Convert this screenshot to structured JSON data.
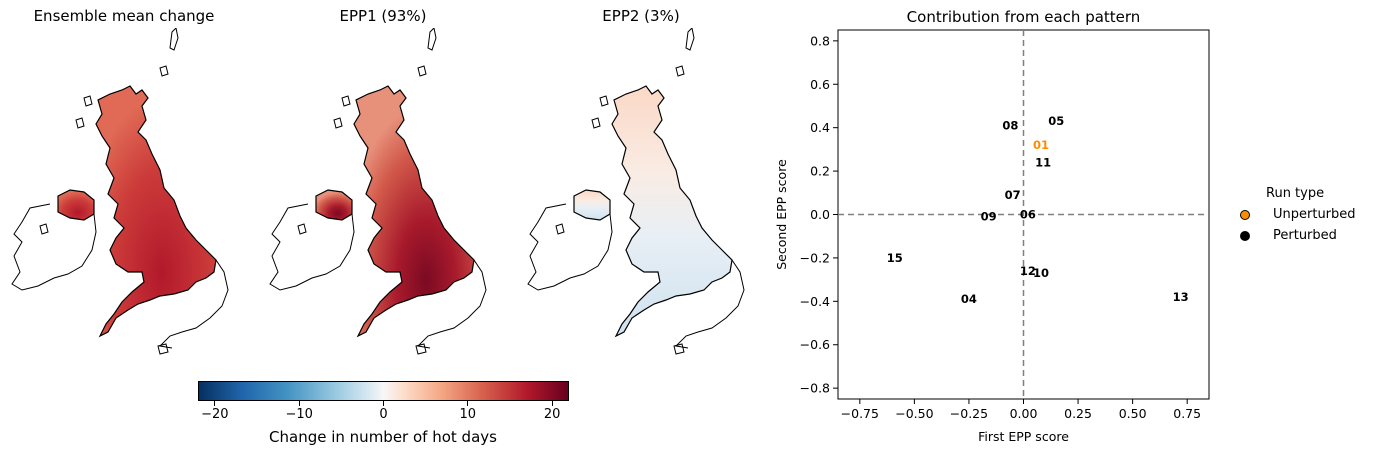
{
  "maps": [
    {
      "title": "Ensemble mean change"
    },
    {
      "title": "EPP1 (93%)"
    },
    {
      "title": "EPP2 (3%)"
    }
  ],
  "colorbar": {
    "label": "Change in number of hot days",
    "ticks": [
      "−20",
      "−10",
      "0",
      "10",
      "20"
    ],
    "tick_values": [
      -20,
      -10,
      0,
      10,
      20
    ],
    "range": [
      -22,
      22
    ],
    "colormap": "RdBu_r"
  },
  "chart_data": {
    "type": "scatter",
    "title": "Contribution from each pattern",
    "xlabel": "First EPP score",
    "ylabel": "Second EPP score",
    "xlim": [
      -0.85,
      0.85
    ],
    "ylim": [
      -0.85,
      0.85
    ],
    "xticks": [
      "−0.75",
      "−0.50",
      "−0.25",
      "0.00",
      "0.25",
      "0.50",
      "0.75"
    ],
    "xtick_values": [
      -0.75,
      -0.5,
      -0.25,
      0,
      0.25,
      0.5,
      0.75
    ],
    "yticks": [
      "−0.8",
      "−0.6",
      "−0.4",
      "−0.2",
      "0.0",
      "0.2",
      "0.4",
      "0.6",
      "0.8"
    ],
    "ytick_values": [
      -0.8,
      -0.6,
      -0.4,
      -0.2,
      0,
      0.2,
      0.4,
      0.6,
      0.8
    ],
    "reference_lines": {
      "x": 0,
      "y": 0,
      "style": "dashed",
      "color": "#808080"
    },
    "grid": false,
    "points": [
      {
        "label": "01",
        "x": 0.08,
        "y": 0.32,
        "type": "Unperturbed"
      },
      {
        "label": "04",
        "x": -0.25,
        "y": -0.39,
        "type": "Perturbed"
      },
      {
        "label": "05",
        "x": 0.15,
        "y": 0.43,
        "type": "Perturbed"
      },
      {
        "label": "06",
        "x": 0.02,
        "y": 0.0,
        "type": "Perturbed"
      },
      {
        "label": "07",
        "x": -0.05,
        "y": 0.09,
        "type": "Perturbed"
      },
      {
        "label": "08",
        "x": -0.06,
        "y": 0.41,
        "type": "Perturbed"
      },
      {
        "label": "09",
        "x": -0.16,
        "y": -0.01,
        "type": "Perturbed"
      },
      {
        "label": "10",
        "x": 0.08,
        "y": -0.27,
        "type": "Perturbed"
      },
      {
        "label": "11",
        "x": 0.09,
        "y": 0.24,
        "type": "Perturbed"
      },
      {
        "label": "12",
        "x": 0.02,
        "y": -0.26,
        "type": "Perturbed"
      },
      {
        "label": "13",
        "x": 0.72,
        "y": -0.38,
        "type": "Perturbed"
      },
      {
        "label": "15",
        "x": -0.59,
        "y": -0.2,
        "type": "Perturbed"
      }
    ],
    "legend": {
      "title": "Run type",
      "placement": "outside-right",
      "entries": [
        {
          "label": "Unperturbed",
          "color": "#ff8c00"
        },
        {
          "label": "Perturbed",
          "color": "#000000"
        }
      ]
    }
  }
}
